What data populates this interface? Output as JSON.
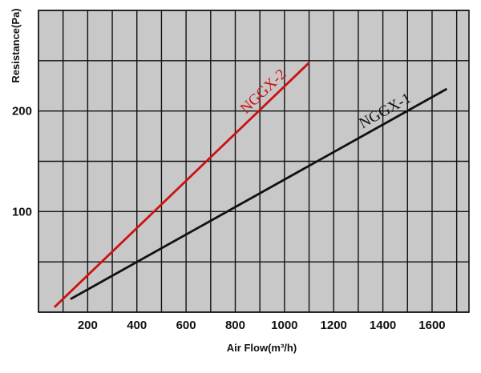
{
  "chart_data": {
    "type": "line",
    "xlabel": "Air Flow(m³/h)",
    "ylabel": "Resistance(Pa)",
    "xlim": [
      0,
      1750
    ],
    "ylim": [
      0,
      300
    ],
    "x_ticks": [
      200,
      400,
      600,
      800,
      1000,
      1200,
      1400,
      1600
    ],
    "x_tick_labels": [
      "200",
      "400",
      "600",
      "800",
      "1000",
      "1200",
      "1400",
      "1600"
    ],
    "y_ticks": [
      100,
      200
    ],
    "y_tick_labels": [
      "100",
      "200"
    ],
    "grid": true,
    "background_color": "#c8c8c8",
    "grid_color": "#111111",
    "series": [
      {
        "name": "NGGX-1",
        "color": "#111111",
        "x": [
          130,
          1660
        ],
        "y": [
          13,
          222
        ]
      },
      {
        "name": "NGGX-2",
        "color": "#cc1111",
        "x": [
          65,
          1100
        ],
        "y": [
          5,
          248
        ]
      }
    ]
  }
}
